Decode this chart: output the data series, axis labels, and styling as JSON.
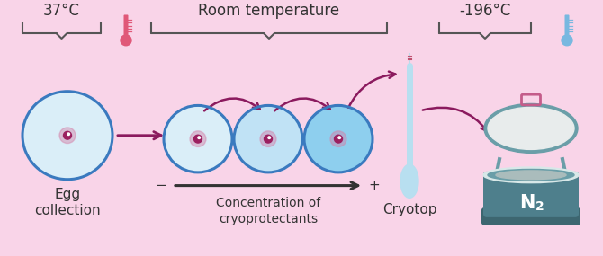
{
  "bg_color": "#f9d4e8",
  "arrow_color": "#8b1a5e",
  "egg_fill_1": "#daeef8",
  "egg_fill_2": "#c0e2f5",
  "egg_fill_3": "#8ecfee",
  "egg_border": "#3a7abf",
  "nucleus_outer": "#d580a8",
  "nucleus_inner": "#9b2060",
  "cryotop_color": "#b8dff0",
  "cryotop_tip": "#9fcce0",
  "tank_body": "#4e7f8c",
  "tank_rim_outer": "#6a9ea8",
  "tank_rim_inner": "#d8e8e8",
  "tank_inner": "#aabcbc",
  "tank_base": "#3d6670",
  "lid_outer": "#6a9ea8",
  "lid_inner": "#e8ecec",
  "lid_handle": "#c45c8a",
  "therm_warm": "#e05878",
  "therm_cold": "#78b8e0",
  "text_color": "#333333",
  "brace_color": "#555555",
  "label_37": "37°C",
  "label_room": "Room temperature",
  "label_neg196": "-196°C",
  "label_egg": "Egg\ncollection",
  "label_conc": "Concentration of\ncryoprotectants",
  "label_cryotop": "Cryotop",
  "label_n2": "N",
  "label_n2_sub": "2",
  "conc_minus": "−",
  "conc_plus": "+"
}
